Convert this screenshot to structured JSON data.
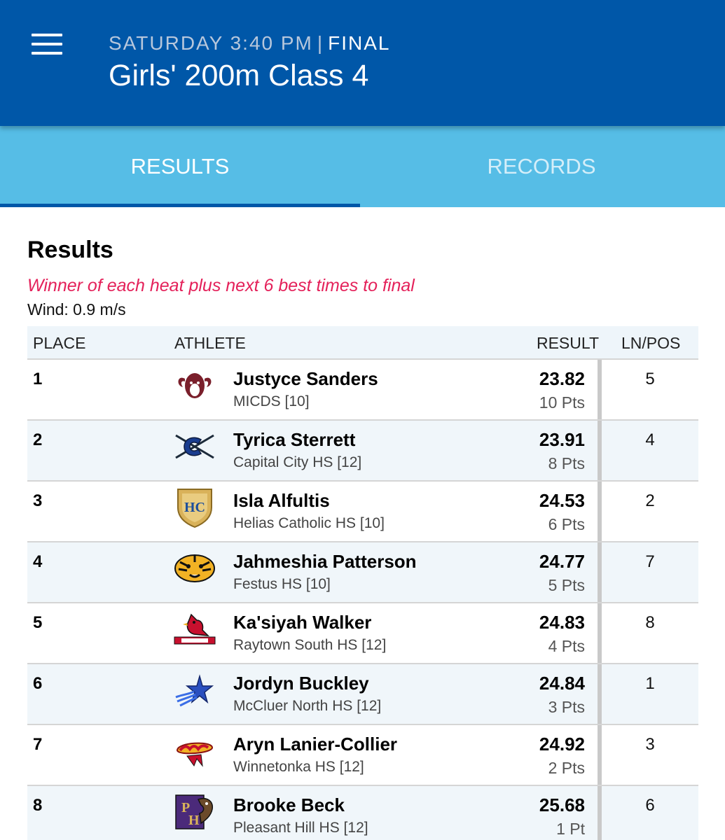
{
  "header": {
    "subtitle_day_time": "SATURDAY 3:40 PM",
    "subtitle_separator": "|",
    "subtitle_status": "FINAL",
    "title": "Girls' 200m Class 4"
  },
  "tabs": [
    {
      "label": "RESULTS",
      "active": true
    },
    {
      "label": "RECORDS",
      "active": false
    }
  ],
  "section": {
    "heading": "Results",
    "note": "Winner of each heat plus next 6 best times to final",
    "wind": "Wind: 0.9 m/s"
  },
  "table": {
    "columns": {
      "place": "PLACE",
      "athlete": "ATHLETE",
      "result": "RESULT",
      "lnpos": "LN/POS"
    },
    "rows": [
      {
        "place": "1",
        "name": "Justyce Sanders",
        "school": "MICDS [10]",
        "time": "23.82",
        "pts": "10 Pts",
        "lnpos": "5",
        "logo_icon": "ram-logo-icon"
      },
      {
        "place": "2",
        "name": "Tyrica Sterrett",
        "school": "Capital City HS [12]",
        "time": "23.91",
        "pts": "8 Pts",
        "lnpos": "4",
        "logo_icon": "crossed-swords-c-logo-icon"
      },
      {
        "place": "3",
        "name": "Isla Alfultis",
        "school": "Helias Catholic HS [10]",
        "time": "24.53",
        "pts": "6 Pts",
        "lnpos": "2",
        "logo_icon": "hc-shield-logo-icon"
      },
      {
        "place": "4",
        "name": "Jahmeshia Patterson",
        "school": "Festus HS [10]",
        "time": "24.77",
        "pts": "5 Pts",
        "lnpos": "7",
        "logo_icon": "tiger-logo-icon"
      },
      {
        "place": "5",
        "name": "Ka'siyah Walker",
        "school": "Raytown South HS [12]",
        "time": "24.83",
        "pts": "4 Pts",
        "lnpos": "8",
        "logo_icon": "cardinal-logo-icon"
      },
      {
        "place": "6",
        "name": "Jordyn Buckley",
        "school": "McCluer North HS [12]",
        "time": "24.84",
        "pts": "3 Pts",
        "lnpos": "1",
        "logo_icon": "star-logo-icon"
      },
      {
        "place": "7",
        "name": "Aryn Lanier-Collier",
        "school": "Winnetonka HS [12]",
        "time": "24.92",
        "pts": "2 Pts",
        "lnpos": "3",
        "logo_icon": "griffins-logo-icon"
      },
      {
        "place": "8",
        "name": "Brooke Beck",
        "school": "Pleasant Hill HS [12]",
        "time": "25.68",
        "pts": "1 Pt",
        "lnpos": "6",
        "logo_icon": "ph-roadrunner-logo-icon"
      }
    ]
  },
  "colors": {
    "appbar": "#0057a8",
    "tabbar": "#56bde6",
    "note_text": "#e4215a",
    "row_alt": "#f0f6fa"
  }
}
